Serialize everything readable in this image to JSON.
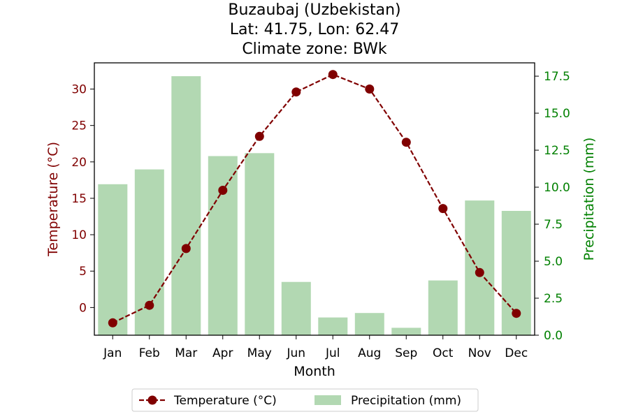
{
  "chart_data": {
    "type": "bar+line",
    "title_lines": [
      "Buzaubaj (Uzbekistan)",
      "Lat: 41.75, Lon: 62.47",
      "Climate zone: BWk"
    ],
    "xlabel": "Month",
    "categories": [
      "Jan",
      "Feb",
      "Mar",
      "Apr",
      "May",
      "Jun",
      "Jul",
      "Aug",
      "Sep",
      "Oct",
      "Nov",
      "Dec"
    ],
    "temperature": {
      "name": "Temperature (°C)",
      "ylabel": "Temperature (°C)",
      "values": [
        -2.1,
        0.3,
        8.1,
        16.1,
        23.5,
        29.6,
        32.0,
        30.0,
        22.7,
        13.6,
        4.8,
        -0.8
      ],
      "ylim": [
        -3.8,
        33.6
      ],
      "ticks": [
        0,
        5,
        10,
        15,
        20,
        25,
        30
      ],
      "color": "#800000",
      "line_style": "dashed",
      "axis": "left"
    },
    "precipitation": {
      "name": "Precipitation (mm)",
      "ylabel": "Precipitation (mm)",
      "values": [
        10.2,
        11.2,
        17.5,
        12.1,
        12.3,
        3.6,
        1.2,
        1.5,
        0.5,
        3.7,
        9.1,
        8.4
      ],
      "ylim": [
        0,
        18.4
      ],
      "ticks": [
        "0.0",
        "2.5",
        "5.0",
        "7.5",
        "10.0",
        "12.5",
        "15.0",
        "17.5"
      ],
      "color": "#b2d8b2",
      "tick_color": "#008000",
      "axis": "right"
    },
    "legend": {
      "position": "bottom-center",
      "entries": [
        "Temperature (°C)",
        "Precipitation (mm)"
      ]
    },
    "grid": false
  }
}
